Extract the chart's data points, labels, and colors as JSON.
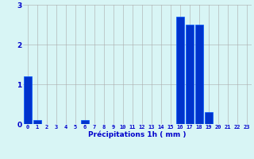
{
  "hours": [
    0,
    1,
    2,
    3,
    4,
    5,
    6,
    7,
    8,
    9,
    10,
    11,
    12,
    13,
    14,
    15,
    16,
    17,
    18,
    19,
    20,
    21,
    22,
    23
  ],
  "values": [
    1.2,
    0.1,
    0.0,
    0.0,
    0.0,
    0.0,
    0.1,
    0.0,
    0.0,
    0.0,
    0.0,
    0.0,
    0.0,
    0.0,
    0.0,
    0.0,
    2.7,
    2.5,
    2.5,
    0.3,
    0.0,
    0.0,
    0.0,
    0.0
  ],
  "bar_color": "#0033cc",
  "bar_edge_color": "#0055ff",
  "background_color": "#d8f5f5",
  "grid_color": "#aaaaaa",
  "xlabel": "Précipitations 1h ( mm )",
  "xlabel_color": "#0000cc",
  "tick_color": "#0000cc",
  "ylim": [
    0,
    3
  ],
  "yticks": [
    0,
    1,
    2,
    3
  ],
  "figsize": [
    3.2,
    2.0
  ],
  "dpi": 100
}
